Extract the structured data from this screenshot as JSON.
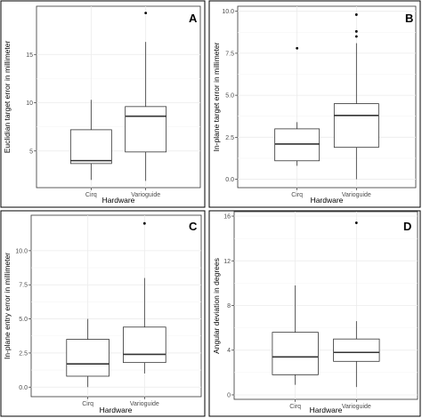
{
  "chart_data": [
    {
      "type": "box",
      "panel_label": "A",
      "xlabel": "Hardware",
      "ylabel": "Euclidian target error in millimeter",
      "categories": [
        "Cirq",
        "Varioguide"
      ],
      "ylim": [
        1.2,
        20.0
      ],
      "yticks": [
        5,
        10,
        15
      ],
      "ytick_labels": [
        "5",
        "10",
        "15"
      ],
      "boxes": [
        {
          "name": "Cirq",
          "min": 2.0,
          "q1": 3.7,
          "median": 4.0,
          "q3": 7.2,
          "max": 10.3,
          "outliers": []
        },
        {
          "name": "Varioguide",
          "min": 1.9,
          "q1": 4.9,
          "median": 8.6,
          "q3": 9.6,
          "max": 16.3,
          "outliers": [
            19.3
          ]
        }
      ]
    },
    {
      "type": "box",
      "panel_label": "B",
      "xlabel": "Hardware",
      "ylabel": "In-plane target error in millimeter",
      "categories": [
        "Cirq",
        "Varioguide"
      ],
      "ylim": [
        -0.5,
        10.3
      ],
      "yticks": [
        0,
        2.5,
        5,
        7.5,
        10
      ],
      "ytick_labels": [
        "0.0",
        "2.5",
        "5.0",
        "7.5",
        "10.0"
      ],
      "boxes": [
        {
          "name": "Cirq",
          "min": 0.8,
          "q1": 1.1,
          "median": 2.1,
          "q3": 3.0,
          "max": 3.4,
          "outliers": [
            7.8
          ]
        },
        {
          "name": "Varioguide",
          "min": 0.0,
          "q1": 1.9,
          "median": 3.8,
          "q3": 4.5,
          "max": 8.1,
          "outliers": [
            8.5,
            8.8,
            9.8
          ]
        }
      ]
    },
    {
      "type": "box",
      "panel_label": "C",
      "xlabel": "Hardware",
      "ylabel": "In-plane entry error in millimeter",
      "categories": [
        "Cirq",
        "Varioguide"
      ],
      "ylim": [
        -0.7,
        12.6
      ],
      "yticks": [
        0,
        2.5,
        5,
        7.5,
        10
      ],
      "ytick_labels": [
        "0.0",
        "2.5",
        "5.0",
        "7.5",
        "10.0"
      ],
      "boxes": [
        {
          "name": "Cirq",
          "min": 0.0,
          "q1": 0.8,
          "median": 1.7,
          "q3": 3.5,
          "max": 5.0,
          "outliers": []
        },
        {
          "name": "Varioguide",
          "min": 1.0,
          "q1": 1.8,
          "median": 2.4,
          "q3": 4.4,
          "max": 8.0,
          "outliers": [
            12.0
          ]
        }
      ]
    },
    {
      "type": "box",
      "panel_label": "D",
      "xlabel": "Hardware",
      "ylabel": "Angular deviation in degrees",
      "categories": [
        "Cirq",
        "Varioguide"
      ],
      "ylim": [
        -0.4,
        16.4
      ],
      "yticks": [
        0,
        4,
        8,
        12,
        16
      ],
      "ytick_labels": [
        "0",
        "4",
        "8",
        "12",
        "16"
      ],
      "boxes": [
        {
          "name": "Cirq",
          "min": 0.9,
          "q1": 1.8,
          "median": 3.4,
          "q3": 5.6,
          "max": 9.8,
          "outliers": []
        },
        {
          "name": "Varioguide",
          "min": 0.7,
          "q1": 3.0,
          "median": 3.8,
          "q3": 5.0,
          "max": 6.6,
          "outliers": [
            15.4
          ]
        }
      ]
    }
  ]
}
